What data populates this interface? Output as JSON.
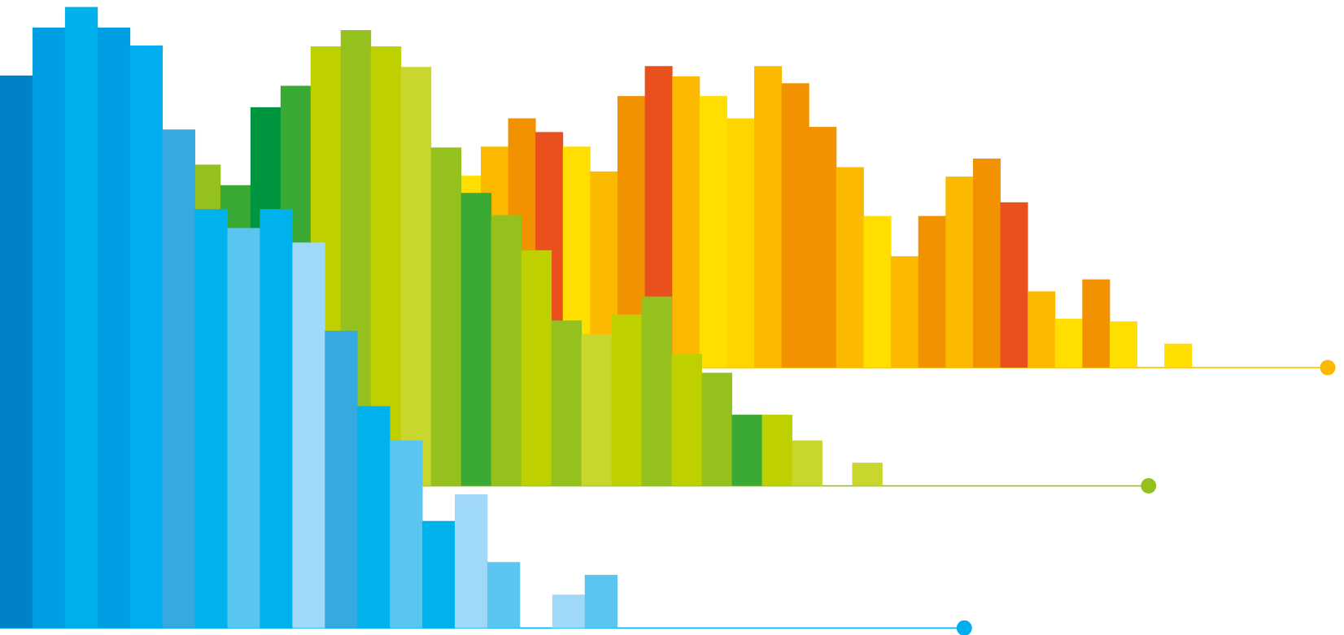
{
  "chart_data": [
    {
      "type": "bar",
      "color": "#fbb900",
      "ylim": [
        0,
        429
      ],
      "values": [
        224,
        258,
        291,
        275,
        258,
        229,
        317,
        352,
        340,
        317,
        291,
        352,
        332,
        281,
        234,
        177,
        130,
        177,
        223,
        244,
        193,
        89,
        57,
        103,
        54,
        0,
        28
      ],
      "colors": [
        "#ffde00",
        "#fbb900",
        "#f39200",
        "#e9501e",
        "#ffde00",
        "#fbb900",
        "#f39200",
        "#e9501e",
        "#fbb900",
        "#ffde00",
        "#ffd500",
        "#fbb900",
        "#f39200",
        "#f39200",
        "#fbb900",
        "#ffde00",
        "#fbb900",
        "#f39200",
        "#fbb900",
        "#f39200",
        "#e9501e",
        "#fbb900",
        "#ffde00",
        "#f39200",
        "#ffde00",
        "#ffde00",
        "#ffde00"
      ]
    },
    {
      "type": "bar",
      "color": "#95c11f",
      "ylim": [
        0,
        567
      ],
      "values": [
        375,
        351,
        442,
        467,
        513,
        532,
        513,
        489,
        395,
        342,
        316,
        275,
        193,
        177,
        200,
        221,
        154,
        132,
        83,
        83,
        53,
        0,
        27
      ],
      "colors": [
        "#95c11f",
        "#3aaa35",
        "#009640",
        "#3aaa35",
        "#bed000",
        "#95c11f",
        "#bed000",
        "#c8d62e",
        "#95c11f",
        "#3aaa35",
        "#95c11f",
        "#bed000",
        "#95c11f",
        "#c8d62e",
        "#bed000",
        "#95c11f",
        "#bed000",
        "#95c11f",
        "#3aaa35",
        "#bed000",
        "#c8d62e",
        "#c8d62e",
        "#c8d62e"
      ]
    },
    {
      "type": "bar",
      "color": "#00aeef",
      "ylim": [
        0,
        733
      ],
      "values": [
        645,
        701,
        725,
        701,
        680,
        582,
        489,
        467,
        489,
        450,
        347,
        259,
        219,
        125,
        156,
        77,
        0,
        39,
        62
      ],
      "colors": [
        "#0082c9",
        "#009fe3",
        "#00b0ea",
        "#009fe3",
        "#00aeef",
        "#36a9e1",
        "#00b2eb",
        "#5bc5f2",
        "#00b2eb",
        "#a0d9f7",
        "#36a9e1",
        "#00b2eb",
        "#5bc5f2",
        "#00b2eb",
        "#a0d9f7",
        "#5bc5f2",
        "#a0d9f7",
        "#a0d9f7",
        "#5bc5f2"
      ]
    }
  ]
}
